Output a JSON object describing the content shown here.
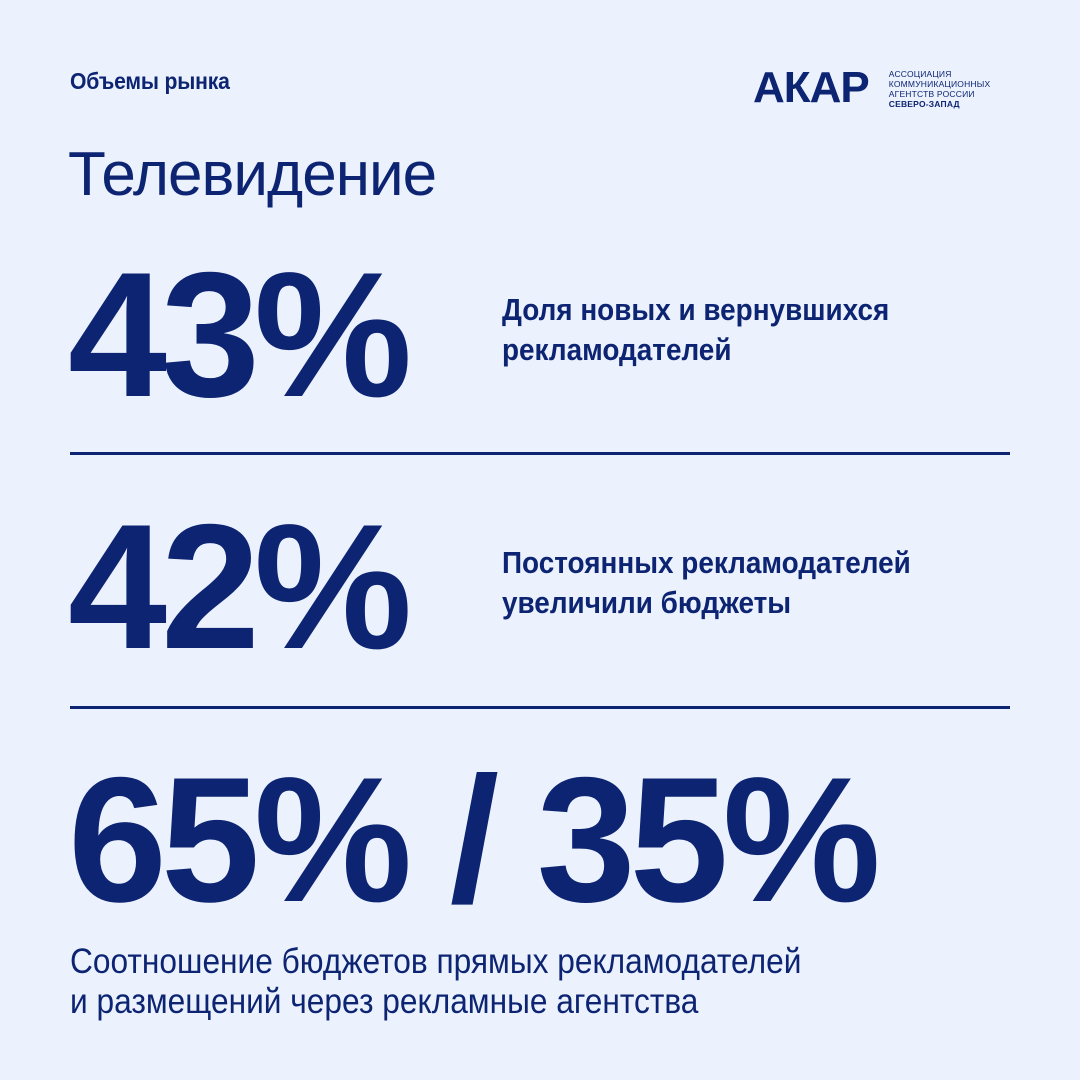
{
  "header": {
    "section_label": "Объемы рынка",
    "logo": {
      "mark": "АКАР",
      "lines": [
        "АССОЦИАЦИЯ",
        "КОММУНИКАЦИОННЫХ",
        "АГЕНТСТВ РОССИИ",
        "СЕВЕРО-ЗАПАД"
      ]
    }
  },
  "title": "Телевидение",
  "stats": [
    {
      "value": "43%",
      "description_lines": [
        "Доля новых и вернувшихся",
        "рекламодателей"
      ]
    },
    {
      "value": "42%",
      "description_lines": [
        "Постоянных рекламодателей",
        "увеличили бюджеты"
      ]
    },
    {
      "value": "65% / 35%",
      "description_lines": [
        "Соотношение бюджетов прямых рекламодателей",
        "и размещений через рекламные агентства"
      ]
    }
  ],
  "colors": {
    "background": "#ebf2fd",
    "accent": "#0d2473"
  }
}
